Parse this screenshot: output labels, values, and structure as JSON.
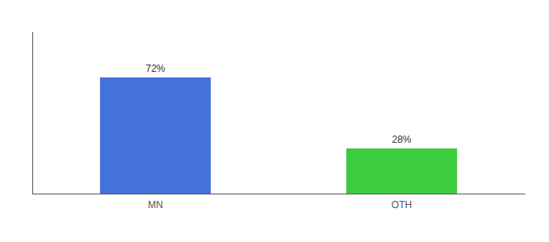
{
  "chart_data": {
    "type": "bar",
    "categories": [
      "MN",
      "OTH"
    ],
    "values": [
      72,
      28
    ],
    "colors": [
      "#4472db",
      "#3dcc3d"
    ],
    "value_labels": [
      "72%",
      "28%"
    ],
    "data_labels": true,
    "ylim": [
      0,
      100
    ],
    "tick_labels": "x",
    "grid": false
  }
}
